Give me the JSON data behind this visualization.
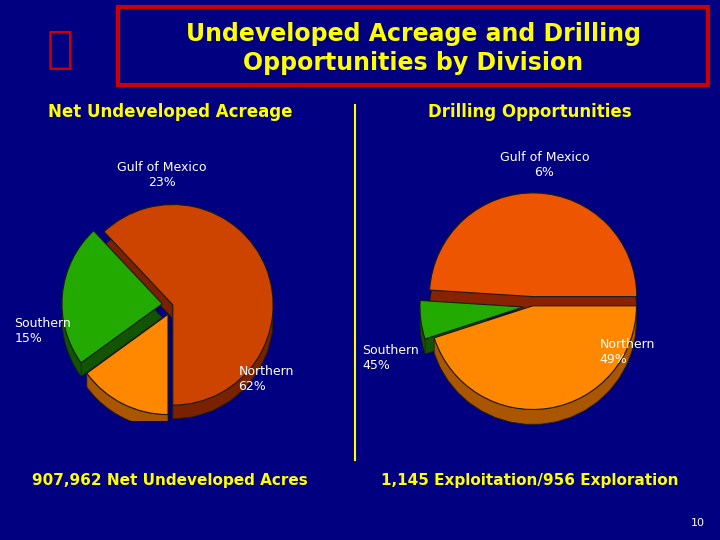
{
  "title_line1": "Undeveloped Acreage and Drilling",
  "title_line2": "Opportunities by Division",
  "title_color": "#FFFF00",
  "title_box_edge_outer": "#CC0000",
  "title_box_edge_inner": "#CC0000",
  "bg_color": "#000080",
  "subtitle_left": "Net Undeveloped Acreage",
  "subtitle_right": "Drilling Opportunities",
  "subtitle_color": "#FFFF00",
  "footer_left": "907,962 Net Undeveloped Acres",
  "footer_right": "1,145 Exploitation/956 Exploration",
  "footer_color": "#FFFF00",
  "page_number": "10",
  "pie1_values": [
    62,
    23,
    15
  ],
  "pie1_colors_top": [
    "#CC4400",
    "#22AA00",
    "#FF8800"
  ],
  "pie1_colors_side": [
    "#7A2200",
    "#115500",
    "#AA5500"
  ],
  "pie1_explode": [
    0.0,
    0.1,
    0.1
  ],
  "pie1_startangle": -90,
  "pie2_values": [
    49,
    6,
    45
  ],
  "pie2_colors_top": [
    "#EE5500",
    "#22AA00",
    "#FF8800"
  ],
  "pie2_colors_side": [
    "#882200",
    "#115500",
    "#AA5500"
  ],
  "pie2_explode": [
    0.08,
    0.08,
    0.0
  ],
  "pie2_startangle": 0,
  "divider_color": "#FFFF00",
  "label_color": "#FFFFFF",
  "label_color2": "#FFFF00"
}
